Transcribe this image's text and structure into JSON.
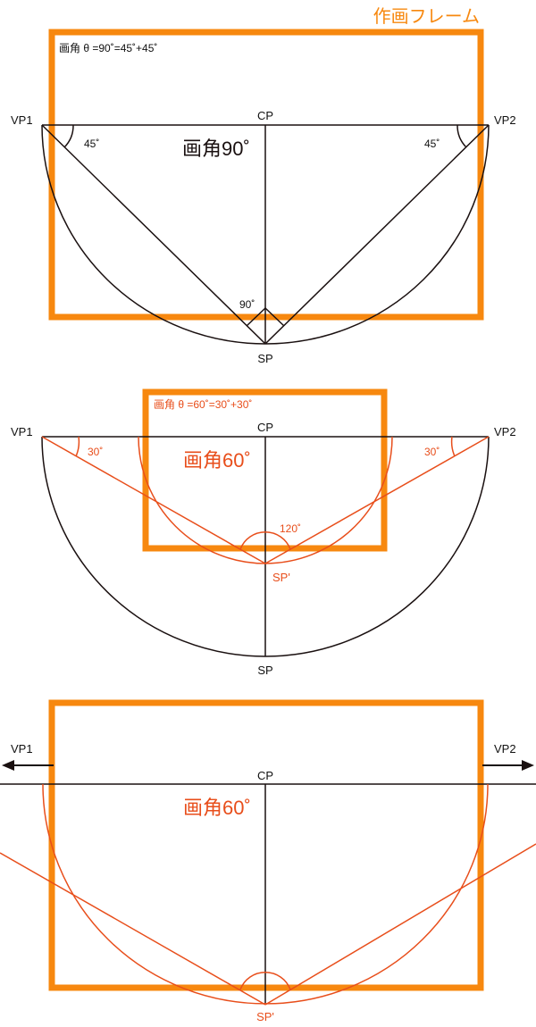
{
  "colors": {
    "frame": "#F7880F",
    "construction": "#E84E1B",
    "ink": "#1A1010",
    "background": "#FFFFFF"
  },
  "title": "作画フレーム",
  "panel1": {
    "formula": "画角 θ =90˚=45˚+45˚",
    "heading": "画角90˚",
    "vp1": "VP1",
    "vp2": "VP2",
    "cp": "CP",
    "sp": "SP",
    "angle_left": "45˚",
    "angle_right": "45˚",
    "angle_sp": "90˚"
  },
  "panel2": {
    "formula": "画角 θ =60˚=30˚+30˚",
    "heading": "画角60˚",
    "vp1": "VP1",
    "vp2": "VP2",
    "cp": "CP",
    "sp": "SP",
    "sp_prime": "SP'",
    "angle_left": "30˚",
    "angle_right": "30˚",
    "angle_sp_prime": "120˚"
  },
  "panel3": {
    "heading": "画角60˚",
    "vp1": "VP1",
    "vp2": "VP2",
    "cp": "CP",
    "sp_prime": "SP'"
  },
  "icons": {
    "left_arrow": "arrow-left-icon",
    "right_arrow": "arrow-right-icon"
  }
}
